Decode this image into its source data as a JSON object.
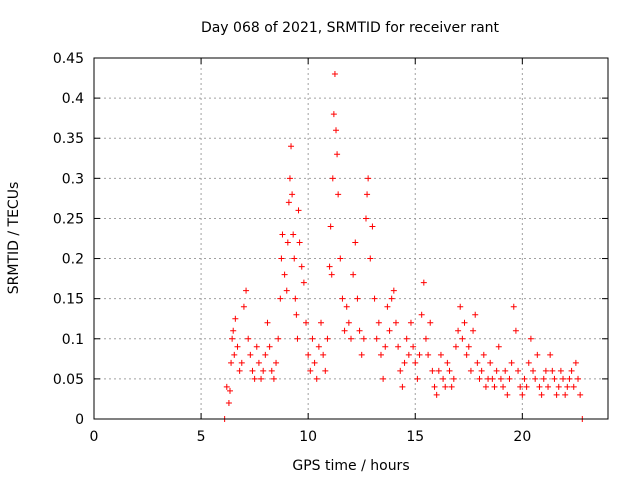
{
  "chart_data": {
    "type": "scatter",
    "title": "Day 068 of 2021, SRMTID for receiver rant",
    "xlabel": "GPS time / hours",
    "ylabel": "SRMTID / TECUs",
    "xlim": [
      0,
      24
    ],
    "ylim": [
      0,
      0.45
    ],
    "xticks": [
      0,
      5,
      10,
      15,
      20
    ],
    "yticks": [
      0,
      0.05,
      0.1,
      0.15,
      0.2,
      0.25,
      0.3,
      0.35,
      0.4,
      0.45
    ],
    "xtick_labels": [
      "0",
      "5",
      "10",
      "15",
      "20"
    ],
    "ytick_labels": [
      "0",
      "0.05",
      "0.1",
      "0.15",
      "0.2",
      "0.25",
      "0.3",
      "0.35",
      "0.4",
      "0.45"
    ],
    "grid": true,
    "marker": "+",
    "color": "#ff0000",
    "series": [
      {
        "name": "SRMTID",
        "points": [
          [
            6.1,
            0.0
          ],
          [
            6.2,
            0.04
          ],
          [
            6.3,
            0.02
          ],
          [
            6.35,
            0.035
          ],
          [
            6.4,
            0.07
          ],
          [
            6.45,
            0.1
          ],
          [
            6.5,
            0.11
          ],
          [
            6.55,
            0.08
          ],
          [
            6.6,
            0.125
          ],
          [
            6.7,
            0.09
          ],
          [
            6.8,
            0.06
          ],
          [
            6.9,
            0.07
          ],
          [
            7.0,
            0.14
          ],
          [
            7.1,
            0.16
          ],
          [
            7.2,
            0.1
          ],
          [
            7.3,
            0.08
          ],
          [
            7.4,
            0.06
          ],
          [
            7.5,
            0.05
          ],
          [
            7.6,
            0.09
          ],
          [
            7.7,
            0.07
          ],
          [
            7.8,
            0.05
          ],
          [
            7.9,
            0.06
          ],
          [
            8.0,
            0.08
          ],
          [
            8.1,
            0.12
          ],
          [
            8.2,
            0.09
          ],
          [
            8.3,
            0.06
          ],
          [
            8.4,
            0.05
          ],
          [
            8.5,
            0.07
          ],
          [
            8.6,
            0.1
          ],
          [
            8.7,
            0.15
          ],
          [
            8.75,
            0.2
          ],
          [
            8.8,
            0.23
          ],
          [
            8.9,
            0.18
          ],
          [
            9.0,
            0.16
          ],
          [
            9.05,
            0.22
          ],
          [
            9.1,
            0.27
          ],
          [
            9.15,
            0.3
          ],
          [
            9.2,
            0.34
          ],
          [
            9.25,
            0.28
          ],
          [
            9.3,
            0.23
          ],
          [
            9.35,
            0.2
          ],
          [
            9.4,
            0.15
          ],
          [
            9.45,
            0.13
          ],
          [
            9.5,
            0.1
          ],
          [
            9.55,
            0.26
          ],
          [
            9.6,
            0.22
          ],
          [
            9.7,
            0.19
          ],
          [
            9.8,
            0.17
          ],
          [
            9.9,
            0.12
          ],
          [
            10.0,
            0.08
          ],
          [
            10.1,
            0.06
          ],
          [
            10.2,
            0.1
          ],
          [
            10.3,
            0.07
          ],
          [
            10.4,
            0.05
          ],
          [
            10.5,
            0.09
          ],
          [
            10.6,
            0.12
          ],
          [
            10.7,
            0.08
          ],
          [
            10.8,
            0.06
          ],
          [
            10.9,
            0.1
          ],
          [
            11.0,
            0.19
          ],
          [
            11.05,
            0.24
          ],
          [
            11.1,
            0.18
          ],
          [
            11.15,
            0.3
          ],
          [
            11.2,
            0.38
          ],
          [
            11.25,
            0.43
          ],
          [
            11.3,
            0.36
          ],
          [
            11.35,
            0.33
          ],
          [
            11.4,
            0.28
          ],
          [
            11.5,
            0.2
          ],
          [
            11.6,
            0.15
          ],
          [
            11.7,
            0.11
          ],
          [
            11.8,
            0.14
          ],
          [
            11.9,
            0.12
          ],
          [
            12.0,
            0.1
          ],
          [
            12.1,
            0.18
          ],
          [
            12.2,
            0.22
          ],
          [
            12.3,
            0.15
          ],
          [
            12.4,
            0.11
          ],
          [
            12.5,
            0.08
          ],
          [
            12.6,
            0.1
          ],
          [
            12.7,
            0.25
          ],
          [
            12.75,
            0.28
          ],
          [
            12.8,
            0.3
          ],
          [
            12.9,
            0.2
          ],
          [
            13.0,
            0.24
          ],
          [
            13.1,
            0.15
          ],
          [
            13.2,
            0.1
          ],
          [
            13.3,
            0.12
          ],
          [
            13.4,
            0.08
          ],
          [
            13.5,
            0.05
          ],
          [
            13.6,
            0.09
          ],
          [
            13.7,
            0.14
          ],
          [
            13.8,
            0.11
          ],
          [
            13.9,
            0.15
          ],
          [
            14.0,
            0.16
          ],
          [
            14.1,
            0.12
          ],
          [
            14.2,
            0.09
          ],
          [
            14.3,
            0.06
          ],
          [
            14.4,
            0.04
          ],
          [
            14.5,
            0.07
          ],
          [
            14.6,
            0.1
          ],
          [
            14.7,
            0.08
          ],
          [
            14.8,
            0.12
          ],
          [
            14.9,
            0.09
          ],
          [
            15.0,
            0.07
          ],
          [
            15.1,
            0.05
          ],
          [
            15.2,
            0.08
          ],
          [
            15.3,
            0.13
          ],
          [
            15.4,
            0.17
          ],
          [
            15.5,
            0.1
          ],
          [
            15.6,
            0.08
          ],
          [
            15.7,
            0.12
          ],
          [
            15.8,
            0.06
          ],
          [
            15.9,
            0.04
          ],
          [
            16.0,
            0.03
          ],
          [
            16.1,
            0.06
          ],
          [
            16.2,
            0.08
          ],
          [
            16.3,
            0.05
          ],
          [
            16.4,
            0.04
          ],
          [
            16.5,
            0.07
          ],
          [
            16.6,
            0.06
          ],
          [
            16.7,
            0.04
          ],
          [
            16.8,
            0.05
          ],
          [
            16.9,
            0.09
          ],
          [
            17.0,
            0.11
          ],
          [
            17.1,
            0.14
          ],
          [
            17.2,
            0.1
          ],
          [
            17.3,
            0.12
          ],
          [
            17.4,
            0.08
          ],
          [
            17.5,
            0.09
          ],
          [
            17.6,
            0.06
          ],
          [
            17.7,
            0.11
          ],
          [
            17.8,
            0.13
          ],
          [
            17.9,
            0.07
          ],
          [
            18.0,
            0.05
          ],
          [
            18.1,
            0.06
          ],
          [
            18.2,
            0.08
          ],
          [
            18.3,
            0.04
          ],
          [
            18.4,
            0.05
          ],
          [
            18.5,
            0.07
          ],
          [
            18.6,
            0.05
          ],
          [
            18.7,
            0.04
          ],
          [
            18.8,
            0.06
          ],
          [
            18.9,
            0.09
          ],
          [
            19.0,
            0.05
          ],
          [
            19.1,
            0.04
          ],
          [
            19.2,
            0.06
          ],
          [
            19.3,
            0.03
          ],
          [
            19.4,
            0.05
          ],
          [
            19.5,
            0.07
          ],
          [
            19.6,
            0.14
          ],
          [
            19.7,
            0.11
          ],
          [
            19.8,
            0.06
          ],
          [
            19.9,
            0.04
          ],
          [
            20.0,
            0.03
          ],
          [
            20.1,
            0.05
          ],
          [
            20.2,
            0.04
          ],
          [
            20.3,
            0.07
          ],
          [
            20.4,
            0.1
          ],
          [
            20.5,
            0.06
          ],
          [
            20.6,
            0.05
          ],
          [
            20.7,
            0.08
          ],
          [
            20.8,
            0.04
          ],
          [
            20.9,
            0.03
          ],
          [
            21.0,
            0.05
          ],
          [
            21.1,
            0.06
          ],
          [
            21.2,
            0.04
          ],
          [
            21.3,
            0.08
          ],
          [
            21.4,
            0.06
          ],
          [
            21.5,
            0.05
          ],
          [
            21.6,
            0.03
          ],
          [
            21.7,
            0.04
          ],
          [
            21.8,
            0.06
          ],
          [
            21.9,
            0.05
          ],
          [
            22.0,
            0.03
          ],
          [
            22.1,
            0.04
          ],
          [
            22.2,
            0.05
          ],
          [
            22.3,
            0.06
          ],
          [
            22.4,
            0.04
          ],
          [
            22.5,
            0.07
          ],
          [
            22.6,
            0.05
          ],
          [
            22.7,
            0.03
          ],
          [
            22.8,
            0.0
          ]
        ]
      }
    ]
  }
}
